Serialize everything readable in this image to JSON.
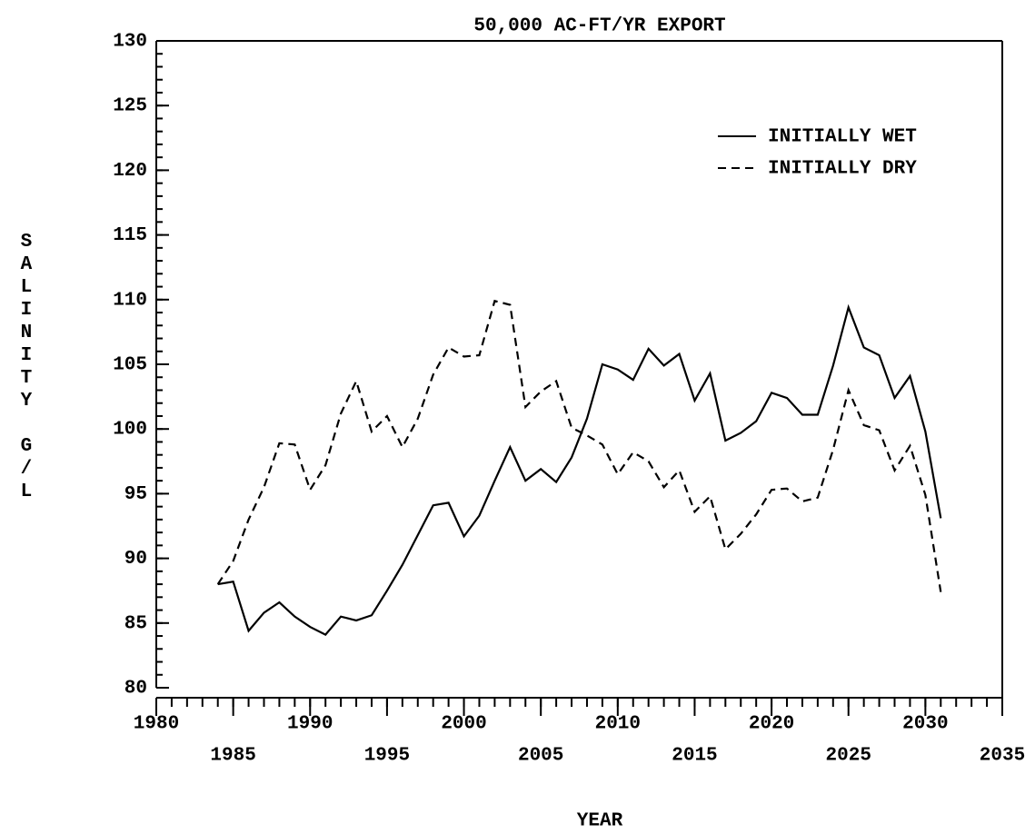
{
  "chart_data": {
    "type": "line",
    "title": "50,000  AC-FT/YR EXPORT",
    "x_label": "YEAR",
    "y_label": "SALINITY G/L",
    "x": [
      1984,
      1985,
      1986,
      1987,
      1988,
      1989,
      1990,
      1991,
      1992,
      1993,
      1994,
      1995,
      1996,
      1997,
      1998,
      1999,
      2000,
      2001,
      2002,
      2003,
      2004,
      2005,
      2006,
      2007,
      2008,
      2009,
      2010,
      2011,
      2012,
      2013,
      2014,
      2015,
      2016,
      2017,
      2018,
      2019,
      2020,
      2021,
      2022,
      2023,
      2024,
      2025,
      2026,
      2027,
      2028,
      2029,
      2030,
      2031
    ],
    "series": [
      {
        "name": "INITIALLY WET",
        "color": "#000000",
        "dash": "solid",
        "values": [
          88.0,
          88.2,
          84.4,
          85.8,
          86.6,
          85.5,
          84.7,
          84.1,
          85.5,
          85.2,
          85.6,
          87.5,
          89.5,
          91.8,
          94.1,
          94.3,
          91.7,
          93.3,
          96.0,
          98.6,
          96.0,
          96.9,
          95.9,
          97.8,
          100.8,
          105.0,
          104.6,
          103.8,
          106.2,
          104.9,
          105.8,
          102.2,
          104.3,
          99.1,
          99.7,
          100.6,
          102.8,
          102.4,
          101.1,
          101.1,
          104.9,
          109.4,
          106.3,
          105.7,
          102.4,
          104.1,
          99.8,
          93.1
        ]
      },
      {
        "name": "INITIALLY DRY",
        "color": "#000000",
        "dash": "dashed",
        "values": [
          88.0,
          89.8,
          93.0,
          95.5,
          98.9,
          98.8,
          95.3,
          97.2,
          101.2,
          103.7,
          99.8,
          101.0,
          98.6,
          100.8,
          104.2,
          106.3,
          105.6,
          105.7,
          109.9,
          109.6,
          101.7,
          102.9,
          103.7,
          100.1,
          99.5,
          98.8,
          96.5,
          98.2,
          97.5,
          95.5,
          96.8,
          93.6,
          94.8,
          90.7,
          91.9,
          93.4,
          95.3,
          95.4,
          94.4,
          94.7,
          98.4,
          103.0,
          100.3,
          99.9,
          96.8,
          98.7,
          94.9,
          87.4
        ]
      }
    ],
    "xlim": [
      1980,
      2035
    ],
    "xticks": [
      1980,
      1985,
      1990,
      1995,
      2000,
      2005,
      2010,
      2015,
      2020,
      2025,
      2030,
      2035
    ],
    "ylim": [
      80,
      130
    ],
    "yticks": [
      80,
      85,
      90,
      95,
      100,
      105,
      110,
      115,
      120,
      125,
      130
    ],
    "legend": "upper right",
    "grid": false
  }
}
